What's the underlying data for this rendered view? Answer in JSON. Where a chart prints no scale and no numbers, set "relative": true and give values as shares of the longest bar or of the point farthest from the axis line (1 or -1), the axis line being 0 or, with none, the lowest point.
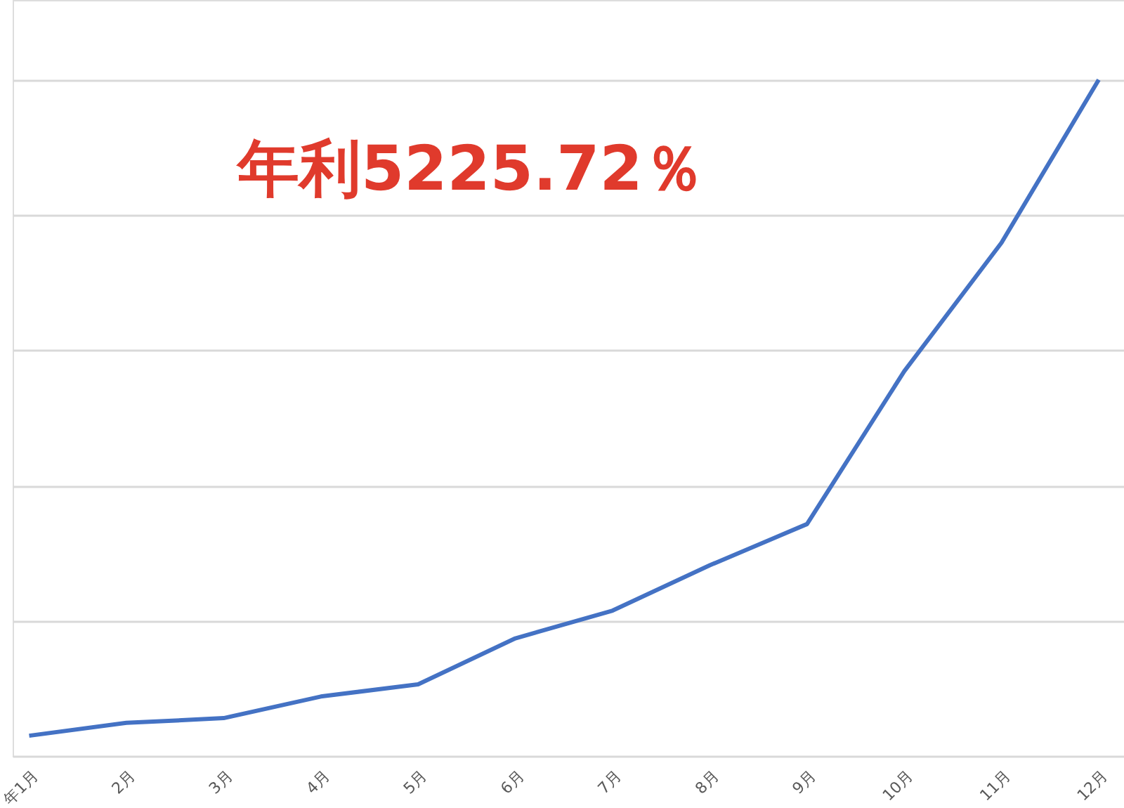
{
  "chart_data": {
    "type": "line",
    "relative": true,
    "grid": "y",
    "categories": [
      "年1月",
      "2月",
      "3月",
      "4月",
      "5月",
      "6月",
      "7月",
      "8月",
      "9月",
      "10月",
      "11月",
      "12月"
    ],
    "series": [
      {
        "color": "#4472c4",
        "values": [
          0.03,
          0.049,
          0.056,
          0.088,
          0.106,
          0.174,
          0.215,
          0.282,
          0.343,
          0.569,
          0.759,
          1.0
        ]
      }
    ],
    "annotations": [
      "年利5225.72％"
    ]
  }
}
